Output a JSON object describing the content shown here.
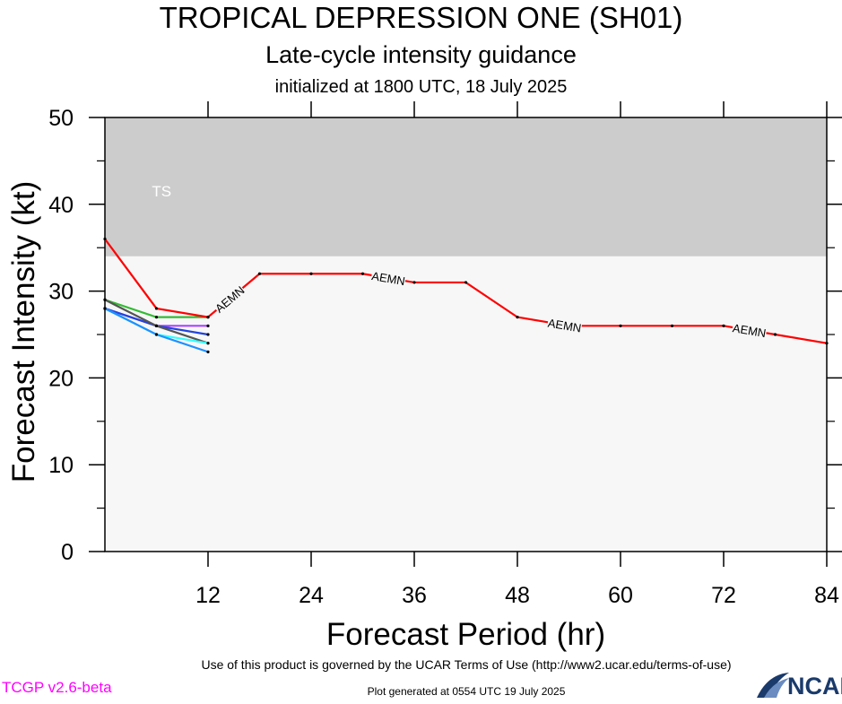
{
  "header": {
    "title": "TROPICAL DEPRESSION ONE (SH01)",
    "subtitle": "Late-cycle intensity guidance",
    "subsubtitle": "initialized at 1800 UTC, 18 July 2025"
  },
  "chart_data": {
    "type": "line",
    "xlabel": "Forecast Period (hr)",
    "ylabel": "Forecast Intensity (kt)",
    "xlim": [
      0,
      84
    ],
    "ylim": [
      0,
      50
    ],
    "xticks": [
      "12",
      "24",
      "36",
      "48",
      "60",
      "72",
      "84"
    ],
    "yticks": [
      "0",
      "10",
      "20",
      "30",
      "40",
      "50"
    ],
    "bands": [
      {
        "label": "TS",
        "from": 34,
        "to": 50,
        "color": "#cccccc"
      },
      {
        "label": "",
        "from": 0,
        "to": 34,
        "color": "#f7f7f7"
      }
    ],
    "series": [
      {
        "name": "AEMN",
        "color": "#ff0000",
        "x": [
          0,
          6,
          12,
          18,
          24,
          30,
          36,
          42,
          48,
          54,
          60,
          66,
          72,
          78,
          84
        ],
        "y": [
          36,
          28,
          27,
          32,
          32,
          32,
          31,
          31,
          27,
          26,
          26,
          26,
          26,
          25,
          24
        ]
      },
      {
        "name": "",
        "color": "#33bb33",
        "x": [
          0,
          6,
          12
        ],
        "y": [
          29,
          27,
          27
        ]
      },
      {
        "name": "",
        "color": "#aa44ff",
        "x": [
          0,
          6,
          12
        ],
        "y": [
          28,
          26,
          26
        ]
      },
      {
        "name": "",
        "color": "#2244dd",
        "x": [
          0,
          6,
          12
        ],
        "y": [
          28,
          26,
          25
        ]
      },
      {
        "name": "",
        "color": "#555555",
        "x": [
          0,
          6,
          12
        ],
        "y": [
          29,
          26,
          24
        ]
      },
      {
        "name": "",
        "color": "#33ffff",
        "x": [
          0,
          6,
          12
        ],
        "y": [
          28,
          25,
          24
        ]
      },
      {
        "name": "",
        "color": "#1e90ff",
        "x": [
          0,
          6,
          12
        ],
        "y": [
          28,
          25,
          23
        ]
      }
    ]
  },
  "footer": {
    "terms": "Use of this product is governed by the UCAR Terms of Use (http://www2.ucar.edu/terms-of-use)",
    "version": "TCGP v2.6-beta",
    "version_color": "#ff00ff",
    "generated": "Plot generated at 0554 UTC   19 July 2025",
    "logo": "NCAR"
  }
}
